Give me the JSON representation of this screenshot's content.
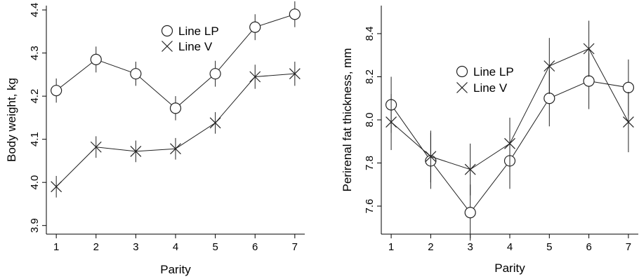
{
  "chart_data": [
    {
      "type": "line",
      "xlabel": "Parity",
      "ylabel": "Body weight, kg",
      "x": [
        1,
        2,
        3,
        4,
        5,
        6,
        7
      ],
      "x_ticks": [
        "1",
        "2",
        "3",
        "4",
        "5",
        "6",
        "7"
      ],
      "y_ticks": [
        "3.9",
        "4.0",
        "4.1",
        "4.2",
        "4.3",
        "4.4"
      ],
      "ylim": [
        3.88,
        4.41
      ],
      "xlim": [
        0.75,
        7.25
      ],
      "legend_position": "top-right",
      "series": [
        {
          "name": "Line LP",
          "marker": "circle",
          "values": [
            4.213,
            4.285,
            4.252,
            4.172,
            4.252,
            4.36,
            4.39
          ],
          "err": [
            0.028,
            0.03,
            0.028,
            0.028,
            0.03,
            0.03,
            0.03
          ]
        },
        {
          "name": "Line V",
          "marker": "x",
          "values": [
            3.99,
            4.082,
            4.072,
            4.078,
            4.138,
            4.245,
            4.252
          ],
          "err": [
            0.025,
            0.025,
            0.025,
            0.025,
            0.025,
            0.028,
            0.028
          ]
        }
      ]
    },
    {
      "type": "line",
      "xlabel": "Parity",
      "ylabel": "Perirenal fat thickness, mm",
      "x": [
        1,
        2,
        3,
        4,
        5,
        6,
        7
      ],
      "x_ticks": [
        "1",
        "2",
        "3",
        "4",
        "5",
        "6",
        "7"
      ],
      "y_ticks": [
        "7.6",
        "7.8",
        "8.0",
        "8.2",
        "8.4"
      ],
      "ylim": [
        7.47,
        8.53
      ],
      "xlim": [
        0.75,
        7.25
      ],
      "legend_position": "top-center",
      "series": [
        {
          "name": "Line LP",
          "marker": "circle",
          "values": [
            8.07,
            7.81,
            7.57,
            7.81,
            8.1,
            8.18,
            8.15
          ],
          "err": [
            0.13,
            0.13,
            0.13,
            0.13,
            0.13,
            0.13,
            0.13
          ]
        },
        {
          "name": "Line V",
          "marker": "x",
          "values": [
            7.99,
            7.83,
            7.77,
            7.89,
            8.25,
            8.33,
            7.99
          ],
          "err": [
            0.13,
            0.12,
            0.12,
            0.12,
            0.13,
            0.13,
            0.14
          ]
        }
      ]
    }
  ]
}
